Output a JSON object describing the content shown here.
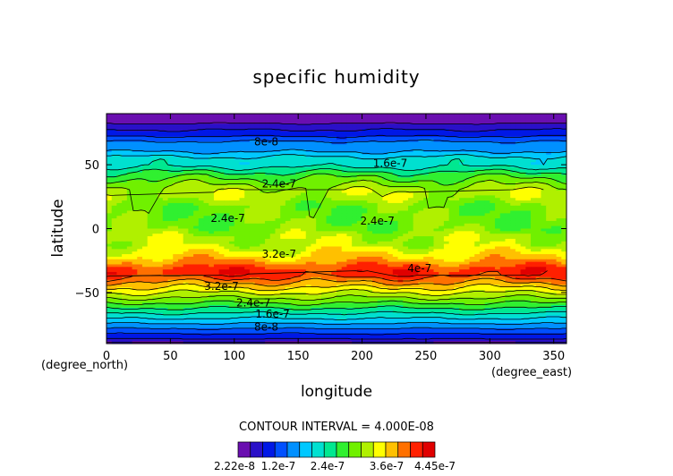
{
  "chart_data": {
    "type": "contour",
    "title": "specific humidity",
    "xlabel": "longitude",
    "ylabel": "latitude",
    "x_unit": "(degree_east)",
    "y_unit": "(degree_north)",
    "xlim": [
      0,
      360
    ],
    "ylim": [
      -90,
      90
    ],
    "x_ticks": [
      "0",
      "50",
      "100",
      "150",
      "200",
      "250",
      "300",
      "350"
    ],
    "y_ticks": [
      "50",
      "0",
      "−50"
    ],
    "contour_interval_text": "CONTOUR INTERVAL = 4.000E-08",
    "colorbar_labels": [
      "2.22e-8",
      "1.2e-7",
      "2.4e-7",
      "3.6e-7",
      "4.45e-7"
    ],
    "colorbar_range": [
      2.22e-08,
      4.45e-07
    ],
    "contour_labels": [
      {
        "text": "8e-8",
        "lon": 125,
        "lat": 68
      },
      {
        "text": "1.6e-7",
        "lon": 222,
        "lat": 51
      },
      {
        "text": "2.4e-7",
        "lon": 135,
        "lat": 35
      },
      {
        "text": "2.4e-7",
        "lon": 95,
        "lat": 8
      },
      {
        "text": "2.4e-7",
        "lon": 212,
        "lat": 6
      },
      {
        "text": "3.2e-7",
        "lon": 135,
        "lat": -20
      },
      {
        "text": "4e-7",
        "lon": 245,
        "lat": -31
      },
      {
        "text": "3.2e-7",
        "lon": 90,
        "lat": -45
      },
      {
        "text": "2.4e-7",
        "lon": 115,
        "lat": -58
      },
      {
        "text": "1.6e-7",
        "lon": 130,
        "lat": -67
      },
      {
        "text": "8e-8",
        "lon": 125,
        "lat": -77
      }
    ],
    "zonal_profile": [
      {
        "lat": 90,
        "level": 0
      },
      {
        "lat": 84,
        "level": 0
      },
      {
        "lat": 80,
        "level": 1
      },
      {
        "lat": 74,
        "level": 2
      },
      {
        "lat": 70,
        "level": 3
      },
      {
        "lat": 66,
        "level": 4
      },
      {
        "lat": 62,
        "level": 4
      },
      {
        "lat": 58,
        "level": 5
      },
      {
        "lat": 54,
        "level": 6
      },
      {
        "lat": 50,
        "level": 6
      },
      {
        "lat": 46,
        "level": 7
      },
      {
        "lat": 42,
        "level": 8
      },
      {
        "lat": 36,
        "level": 9
      },
      {
        "lat": 30,
        "level": 10
      },
      {
        "lat": 24,
        "level": 10
      },
      {
        "lat": 18,
        "level": 9
      },
      {
        "lat": 12,
        "level": 9
      },
      {
        "lat": 6,
        "level": 9
      },
      {
        "lat": 0,
        "level": 9
      },
      {
        "lat": -6,
        "level": 10
      },
      {
        "lat": -12,
        "level": 10
      },
      {
        "lat": -18,
        "level": 11
      },
      {
        "lat": -24,
        "level": 12
      },
      {
        "lat": -28,
        "level": 13
      },
      {
        "lat": -32,
        "level": 14
      },
      {
        "lat": -36,
        "level": 14
      },
      {
        "lat": -40,
        "level": 13
      },
      {
        "lat": -44,
        "level": 12
      },
      {
        "lat": -48,
        "level": 11
      },
      {
        "lat": -52,
        "level": 10
      },
      {
        "lat": -56,
        "level": 9
      },
      {
        "lat": -60,
        "level": 8
      },
      {
        "lat": -64,
        "level": 7
      },
      {
        "lat": -68,
        "level": 6
      },
      {
        "lat": -72,
        "level": 5
      },
      {
        "lat": -76,
        "level": 4
      },
      {
        "lat": -80,
        "level": 3
      },
      {
        "lat": -84,
        "level": 2
      },
      {
        "lat": -88,
        "level": 1
      },
      {
        "lat": -90,
        "level": 0
      }
    ],
    "colors": [
      "#6a0fb0",
      "#2a10c8",
      "#0018e6",
      "#0050ff",
      "#0090ff",
      "#00c8ff",
      "#00e0d0",
      "#00e890",
      "#30f030",
      "#70f000",
      "#b0f000",
      "#ffff00",
      "#ffc000",
      "#ff7000",
      "#ff2000",
      "#e00000"
    ]
  }
}
